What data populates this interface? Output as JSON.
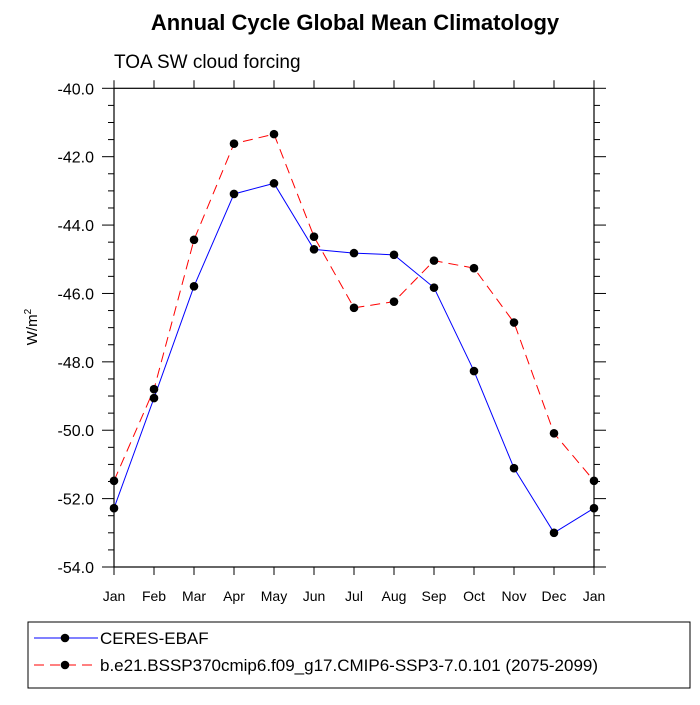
{
  "chart_data": {
    "type": "line",
    "title": "Annual Cycle Global Mean Climatology",
    "subtitle": "TOA SW cloud forcing",
    "xlabel": "",
    "ylabel": "W/m",
    "ylabel_superscript": "2",
    "categories": [
      "Jan",
      "Feb",
      "Mar",
      "Apr",
      "May",
      "Jun",
      "Jul",
      "Aug",
      "Sep",
      "Oct",
      "Nov",
      "Dec",
      "Jan"
    ],
    "ylim": [
      -54.0,
      -40.0
    ],
    "yticks": [
      "-40.0",
      "-42.0",
      "-44.0",
      "-46.0",
      "-48.0",
      "-50.0",
      "-52.0",
      "-54.0"
    ],
    "grid": false,
    "legend_position": "bottom",
    "series": [
      {
        "name": "CERES-EBAF",
        "color": "#0000ff",
        "dash": "solid",
        "values": [
          -52.28,
          -49.06,
          -45.79,
          -43.09,
          -42.78,
          -44.71,
          -44.82,
          -44.87,
          -45.83,
          -48.27,
          -51.11,
          -53.0,
          -52.28
        ]
      },
      {
        "name": "b.e21.BSSP370cmip6.f09_g17.CMIP6-SSP3-7.0.101 (2075-2099)",
        "color": "#ff0000",
        "dash": "dashed",
        "values": [
          -51.48,
          -48.8,
          -44.43,
          -41.62,
          -41.34,
          -44.34,
          -46.42,
          -46.24,
          -45.04,
          -45.26,
          -46.85,
          -50.09,
          -51.48
        ]
      }
    ]
  }
}
